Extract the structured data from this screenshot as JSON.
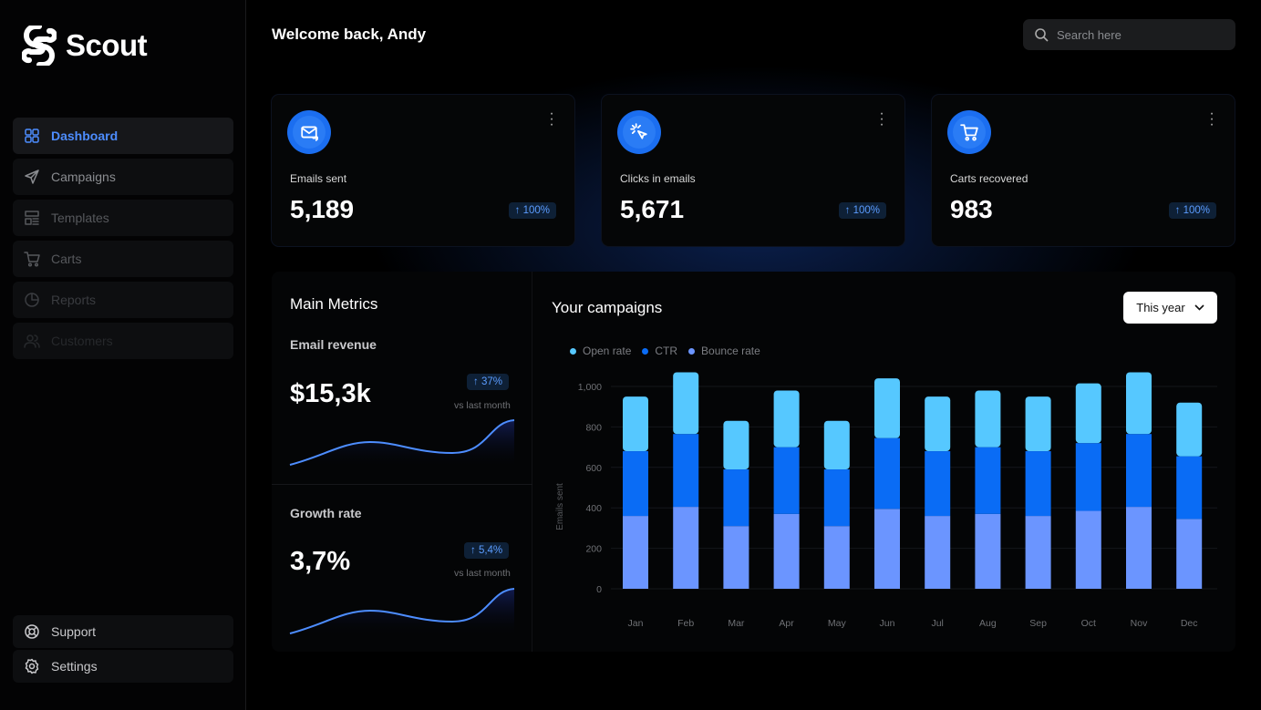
{
  "app": {
    "name": "Scout"
  },
  "sidebar": {
    "items": [
      {
        "label": "Dashboard",
        "icon": "grid-icon"
      },
      {
        "label": "Campaigns",
        "icon": "send-icon"
      },
      {
        "label": "Templates",
        "icon": "template-icon"
      },
      {
        "label": "Carts",
        "icon": "cart-icon"
      },
      {
        "label": "Reports",
        "icon": "pie-chart-icon"
      },
      {
        "label": "Customers",
        "icon": "users-icon"
      }
    ],
    "bottom": [
      {
        "label": "Support",
        "icon": "lifebuoy-icon"
      },
      {
        "label": "Settings",
        "icon": "gear-icon"
      }
    ]
  },
  "header": {
    "welcome": "Welcome back, Andy",
    "search_placeholder": "Search here"
  },
  "cards": [
    {
      "label": "Emails sent",
      "value": "5,189",
      "change": "↑ 100%",
      "icon": "mail-send-icon"
    },
    {
      "label": "Clicks in emails",
      "value": "5,671",
      "change": "↑ 100%",
      "icon": "cursor-click-icon"
    },
    {
      "label": "Carts recovered",
      "value": "983",
      "change": "↑ 100%",
      "icon": "cart-icon"
    }
  ],
  "metrics": {
    "title": "Main Metrics",
    "revenue": {
      "label": "Email revenue",
      "value": "$15,3k",
      "change": "↑ 37%",
      "note": "vs last month"
    },
    "growth": {
      "label": "Growth rate",
      "value": "3,7%",
      "change": "↑ 5,4%",
      "note": "vs last month"
    }
  },
  "campaigns": {
    "title": "Your campaigns",
    "period": "This year"
  },
  "colors": {
    "accent": "#4d8dff",
    "open": "#56c8ff",
    "ctr": "#0a6cf5",
    "bounce": "#6b95ff"
  },
  "chart_data": {
    "type": "bar",
    "stacked": true,
    "ylabel": "Emails sent",
    "ylim": [
      0,
      1000
    ],
    "yticks": [
      "0",
      "200",
      "400",
      "600",
      "800",
      "1,000"
    ],
    "grid": true,
    "legend": "top-left",
    "categories": [
      "Jan",
      "Feb",
      "Mar",
      "Apr",
      "May",
      "Jun",
      "Jul",
      "Aug",
      "Sep",
      "Oct",
      "Nov",
      "Dec"
    ],
    "series": [
      {
        "name": "Bounce rate",
        "values": [
          360,
          405,
          310,
          370,
          310,
          395,
          360,
          370,
          360,
          385,
          405,
          345
        ]
      },
      {
        "name": "CTR",
        "values": [
          320,
          360,
          280,
          330,
          280,
          350,
          320,
          330,
          320,
          335,
          360,
          310
        ]
      },
      {
        "name": "Open rate",
        "values": [
          270,
          305,
          240,
          280,
          240,
          295,
          270,
          280,
          270,
          295,
          305,
          265
        ]
      }
    ]
  }
}
